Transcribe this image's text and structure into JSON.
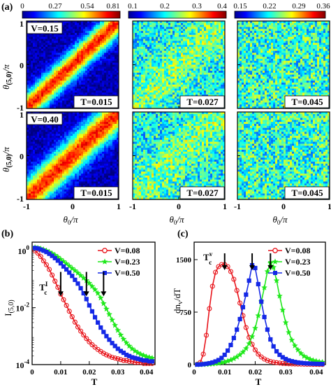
{
  "panel_labels": {
    "a": "(a)",
    "b": "(b)",
    "c": "(c)"
  },
  "heatmaps": {
    "colorbars": [
      {
        "ticks": [
          "0",
          "0.27",
          "0.54",
          "0.81"
        ],
        "min": 0,
        "max": 0.81
      },
      {
        "ticks": [
          "0.1",
          "0.2",
          "0.3",
          "0.4"
        ],
        "min": 0.1,
        "max": 0.4
      },
      {
        "ticks": [
          "0.15",
          "0.22",
          "0.29",
          "0.36"
        ],
        "min": 0.15,
        "max": 0.36
      }
    ],
    "row_labels": [
      "V=0.15",
      "V=0.40"
    ],
    "temps": [
      "T=0.015",
      "T=0.027",
      "T=0.045"
    ],
    "ylabel_main": "θ",
    "ylabel_sub": "(5,0)",
    "ylabel_tail": "/π",
    "xlabel": "θ0/π",
    "xlabel_main": "θ",
    "xlabel_sub": "0",
    "xlabel_tail": "/π",
    "xticks": [
      "-1",
      "0",
      "1"
    ],
    "yticks": [
      "1",
      "0",
      "-1"
    ]
  },
  "chart_data": [
    {
      "panel": "b",
      "type": "line",
      "xlabel": "T",
      "ylabel": "I(5,0)",
      "ylabel_main": "I",
      "ylabel_sub": "(5,0)",
      "yscale": "log",
      "xlim": [
        0,
        0.043
      ],
      "ylim": [
        0.0001,
        2
      ],
      "xticks": [
        "0",
        "0.01",
        "0.02",
        "0.03",
        "0.04"
      ],
      "yticks": [
        "10^0",
        "10^-2",
        "10^-4"
      ],
      "legend_position": "top-right",
      "annotation": "Tc^I",
      "annotation_main": "T",
      "annotation_sub": "c",
      "annotation_sup": "I",
      "arrows_at": [
        0.01,
        0.019,
        0.025
      ],
      "series": [
        {
          "name": "V=0.08",
          "color": "#e8141b",
          "marker": "circle",
          "x": [
            0.001,
            0.002,
            0.003,
            0.004,
            0.005,
            0.006,
            0.007,
            0.008,
            0.009,
            0.01,
            0.011,
            0.012,
            0.013,
            0.014,
            0.015,
            0.016,
            0.017,
            0.018,
            0.019,
            0.02,
            0.021,
            0.022,
            0.023,
            0.024,
            0.025,
            0.026,
            0.027,
            0.028,
            0.029,
            0.03,
            0.031,
            0.032,
            0.033,
            0.034,
            0.035,
            0.036,
            0.037,
            0.038,
            0.039,
            0.04,
            0.041,
            0.042
          ],
          "y": [
            1.0,
            0.82,
            0.62,
            0.44,
            0.32,
            0.22,
            0.14,
            0.085,
            0.052,
            0.03,
            0.019,
            0.012,
            0.0075,
            0.0048,
            0.0031,
            0.0021,
            0.0015,
            0.0011,
            0.00082,
            0.00063,
            0.0005,
            0.00041,
            0.00034,
            0.00029,
            0.00025,
            0.00022,
            0.0002,
            0.00018,
            0.00017,
            0.00016,
            0.00015,
            0.00014,
            0.00014,
            0.00013,
            0.00013,
            0.00012,
            0.00012,
            0.00012,
            0.00011,
            0.00011,
            0.00011,
            0.00011
          ]
        },
        {
          "name": "V=0.23",
          "color": "#1ee81a",
          "marker": "star",
          "x": [
            0.001,
            0.002,
            0.003,
            0.004,
            0.005,
            0.006,
            0.007,
            0.008,
            0.009,
            0.01,
            0.011,
            0.012,
            0.013,
            0.014,
            0.015,
            0.016,
            0.017,
            0.018,
            0.019,
            0.02,
            0.021,
            0.022,
            0.023,
            0.024,
            0.025,
            0.026,
            0.027,
            0.028,
            0.029,
            0.03,
            0.031,
            0.032,
            0.033,
            0.034,
            0.035,
            0.036,
            0.037,
            0.038,
            0.039,
            0.04,
            0.041,
            0.042
          ],
          "y": [
            1.3,
            1.25,
            1.18,
            1.1,
            1.0,
            0.9,
            0.8,
            0.7,
            0.6,
            0.5,
            0.42,
            0.35,
            0.29,
            0.24,
            0.2,
            0.165,
            0.135,
            0.11,
            0.09,
            0.072,
            0.056,
            0.043,
            0.032,
            0.022,
            0.014,
            0.009,
            0.0058,
            0.0037,
            0.0024,
            0.0016,
            0.0011,
            0.00078,
            0.00058,
            0.00045,
            0.00036,
            0.0003,
            0.00026,
            0.00023,
            0.00021,
            0.00019,
            0.00018,
            0.00017
          ]
        },
        {
          "name": "V=0.50",
          "color": "#1428e6",
          "marker": "square",
          "x": [
            0.001,
            0.002,
            0.003,
            0.004,
            0.005,
            0.006,
            0.007,
            0.008,
            0.009,
            0.01,
            0.011,
            0.012,
            0.013,
            0.014,
            0.015,
            0.016,
            0.017,
            0.018,
            0.019,
            0.02,
            0.021,
            0.022,
            0.023,
            0.024,
            0.025,
            0.026,
            0.027,
            0.028,
            0.029,
            0.03,
            0.031,
            0.032,
            0.033,
            0.034,
            0.035,
            0.036,
            0.037,
            0.038,
            0.039,
            0.04,
            0.041,
            0.042
          ],
          "y": [
            1.25,
            1.2,
            1.1,
            1.0,
            0.9,
            0.78,
            0.66,
            0.55,
            0.45,
            0.36,
            0.28,
            0.22,
            0.17,
            0.13,
            0.095,
            0.07,
            0.048,
            0.032,
            0.02,
            0.012,
            0.0074,
            0.0046,
            0.003,
            0.002,
            0.0014,
            0.001,
            0.00075,
            0.00057,
            0.00045,
            0.00036,
            0.0003,
            0.00026,
            0.00022,
            0.0002,
            0.00018,
            0.00017,
            0.00016,
            0.00015,
            0.00014,
            0.00014,
            0.00013,
            0.00013
          ]
        }
      ]
    },
    {
      "panel": "c",
      "type": "line",
      "xlabel": "T",
      "ylabel": "dnv/dT",
      "ylabel_main": "dn",
      "ylabel_sub": "v",
      "ylabel_tail": "/dT",
      "xlim": [
        0,
        0.043
      ],
      "ylim": [
        0,
        1750
      ],
      "xticks": [
        "0",
        "0.01",
        "0.02",
        "0.03",
        "0.04"
      ],
      "yticks": [
        "0",
        "750",
        "1500"
      ],
      "legend_position": "top-right",
      "annotation": "Tc^v",
      "annotation_main": "T",
      "annotation_sub": "c",
      "annotation_sup": "v",
      "arrows_at": [
        0.01,
        0.019,
        0.025
      ],
      "series": [
        {
          "name": "V=0.08",
          "color": "#e8141b",
          "marker": "circle",
          "x": [
            0.001,
            0.002,
            0.003,
            0.004,
            0.005,
            0.006,
            0.007,
            0.008,
            0.009,
            0.01,
            0.011,
            0.012,
            0.013,
            0.014,
            0.015,
            0.016,
            0.017,
            0.018,
            0.019,
            0.02,
            0.021,
            0.022,
            0.023,
            0.024,
            0.025,
            0.026,
            0.027,
            0.028,
            0.029,
            0.03,
            0.031,
            0.032,
            0.033,
            0.034,
            0.035,
            0.036,
            0.037,
            0.038,
            0.039,
            0.04,
            0.041,
            0.042
          ],
          "y": [
            5,
            30,
            150,
            420,
            800,
            1120,
            1320,
            1400,
            1430,
            1430,
            1400,
            1330,
            1220,
            1060,
            880,
            700,
            530,
            390,
            290,
            210,
            150,
            110,
            80,
            60,
            45,
            35,
            28,
            22,
            18,
            15,
            12,
            10,
            9,
            8,
            7,
            6,
            5,
            5,
            4,
            4,
            3,
            3
          ]
        },
        {
          "name": "V=0.23",
          "color": "#1ee81a",
          "marker": "star",
          "x": [
            0.001,
            0.002,
            0.003,
            0.004,
            0.005,
            0.006,
            0.007,
            0.008,
            0.009,
            0.01,
            0.011,
            0.012,
            0.013,
            0.014,
            0.015,
            0.016,
            0.017,
            0.018,
            0.019,
            0.02,
            0.021,
            0.022,
            0.023,
            0.024,
            0.025,
            0.026,
            0.027,
            0.028,
            0.029,
            0.03,
            0.031,
            0.032,
            0.033,
            0.034,
            0.035,
            0.036,
            0.037,
            0.038,
            0.039,
            0.04,
            0.041,
            0.042
          ],
          "y": [
            0,
            0,
            2,
            4,
            6,
            10,
            15,
            20,
            28,
            38,
            50,
            65,
            85,
            110,
            140,
            180,
            230,
            300,
            400,
            520,
            700,
            900,
            1100,
            1330,
            1450,
            1390,
            1200,
            980,
            780,
            600,
            460,
            350,
            270,
            210,
            160,
            120,
            95,
            75,
            60,
            50,
            40,
            35
          ]
        },
        {
          "name": "V=0.50",
          "color": "#1428e6",
          "marker": "square",
          "x": [
            0.001,
            0.002,
            0.003,
            0.004,
            0.005,
            0.006,
            0.007,
            0.008,
            0.009,
            0.01,
            0.011,
            0.012,
            0.013,
            0.014,
            0.015,
            0.016,
            0.017,
            0.018,
            0.019,
            0.02,
            0.021,
            0.022,
            0.023,
            0.024,
            0.025,
            0.026,
            0.027,
            0.028,
            0.029,
            0.03,
            0.031,
            0.032,
            0.033,
            0.034,
            0.035,
            0.036,
            0.037,
            0.038,
            0.039,
            0.04,
            0.041,
            0.042
          ],
          "y": [
            0,
            2,
            6,
            12,
            20,
            30,
            45,
            65,
            95,
            140,
            200,
            280,
            380,
            500,
            650,
            820,
            1000,
            1200,
            1420,
            1380,
            1150,
            900,
            680,
            500,
            360,
            260,
            190,
            140,
            105,
            80,
            60,
            48,
            38,
            30,
            25,
            20,
            17,
            15,
            13,
            11,
            10,
            9
          ]
        }
      ]
    }
  ]
}
